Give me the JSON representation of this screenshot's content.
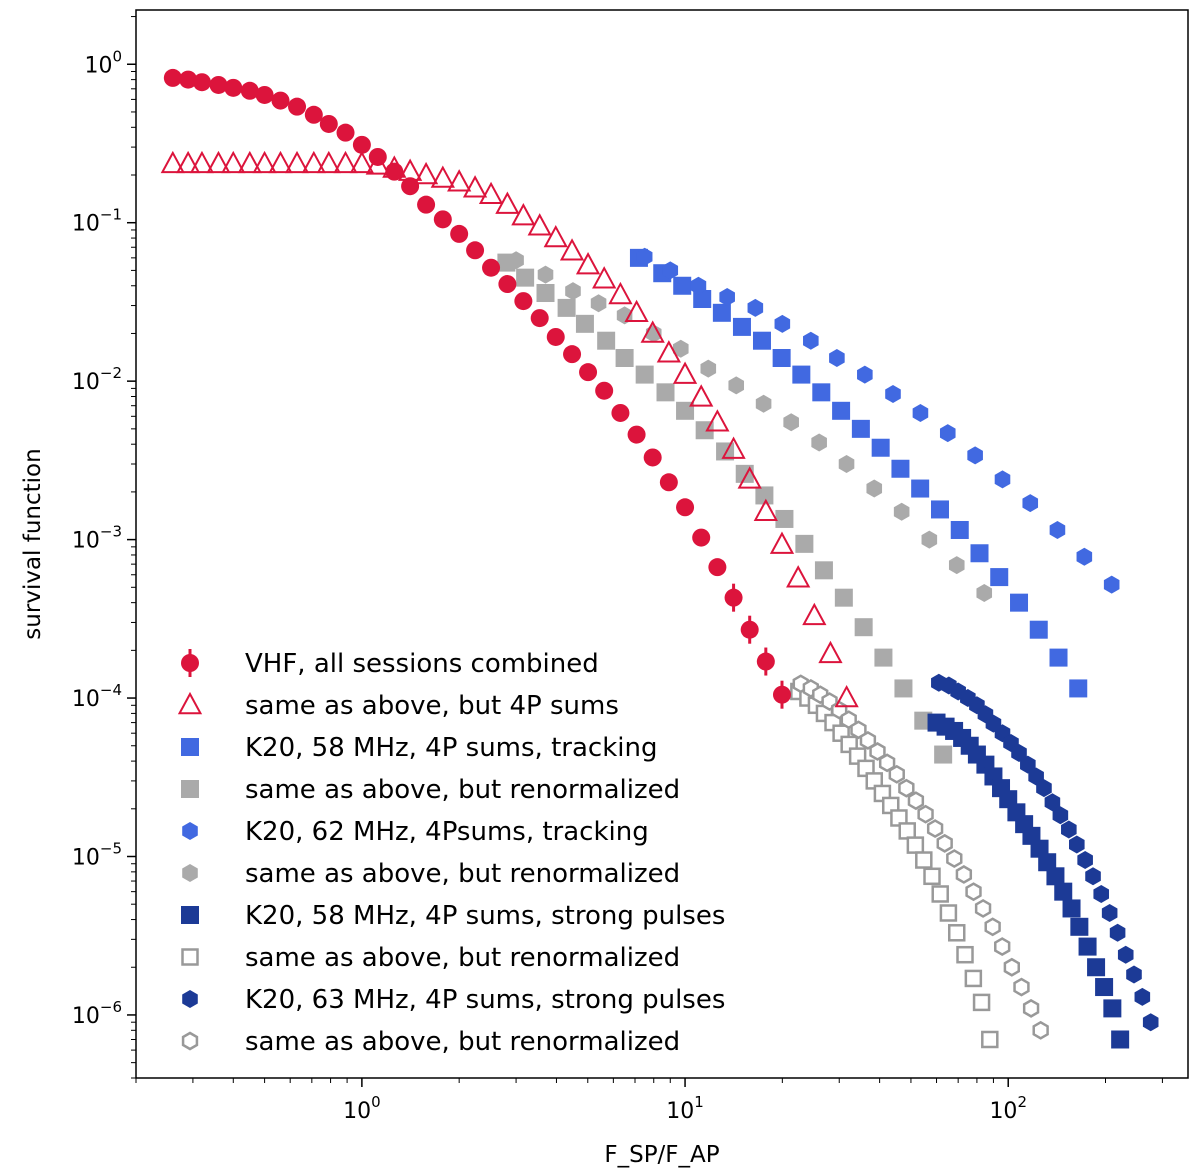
{
  "chart_data": {
    "type": "scatter",
    "xscale": "log",
    "yscale": "log",
    "xlabel": "F_SP/F_AP",
    "ylabel": "survival function",
    "xlim": [
      0.2,
      360
    ],
    "ylim": [
      4e-07,
      2.2
    ],
    "grid": false,
    "legend_position": "lower-left",
    "x_major_ticks": [
      {
        "value": 1,
        "base": "10",
        "exp": "0"
      },
      {
        "value": 10,
        "base": "10",
        "exp": "1"
      },
      {
        "value": 100,
        "base": "10",
        "exp": "2"
      }
    ],
    "y_major_ticks": [
      {
        "value": 1,
        "base": "10",
        "exp": "0"
      },
      {
        "value": 0.1,
        "base": "10",
        "exp": "−1"
      },
      {
        "value": 0.01,
        "base": "10",
        "exp": "−2"
      },
      {
        "value": 0.001,
        "base": "10",
        "exp": "−3"
      },
      {
        "value": 0.0001,
        "base": "10",
        "exp": "−4"
      },
      {
        "value": 1e-05,
        "base": "10",
        "exp": "−5"
      },
      {
        "value": 1e-06,
        "base": "10",
        "exp": "−6"
      }
    ],
    "series": [
      {
        "name": "VHF, all sessions combined",
        "marker": "circle",
        "filled": true,
        "color": "#dc143c",
        "points": [
          [
            0.26,
            0.82
          ],
          [
            0.29,
            0.8
          ],
          [
            0.32,
            0.77
          ],
          [
            0.36,
            0.74
          ],
          [
            0.4,
            0.71
          ],
          [
            0.45,
            0.68
          ],
          [
            0.5,
            0.64
          ],
          [
            0.56,
            0.59
          ],
          [
            0.63,
            0.54
          ],
          [
            0.71,
            0.48
          ],
          [
            0.79,
            0.42
          ],
          [
            0.89,
            0.37
          ],
          [
            1.0,
            0.31
          ],
          [
            1.12,
            0.26
          ],
          [
            1.26,
            0.21
          ],
          [
            1.41,
            0.17
          ],
          [
            1.58,
            0.13
          ],
          [
            1.78,
            0.105
          ],
          [
            2.0,
            0.085
          ],
          [
            2.24,
            0.067
          ],
          [
            2.51,
            0.052
          ],
          [
            2.82,
            0.041
          ],
          [
            3.16,
            0.032
          ],
          [
            3.55,
            0.025
          ],
          [
            3.98,
            0.019
          ],
          [
            4.47,
            0.0148
          ],
          [
            5.01,
            0.0114
          ],
          [
            5.62,
            0.0087
          ],
          [
            6.31,
            0.0063
          ],
          [
            7.08,
            0.0046
          ],
          [
            7.94,
            0.0033
          ],
          [
            8.91,
            0.0023
          ],
          [
            10.0,
            0.0016
          ],
          [
            11.22,
            0.00103
          ],
          [
            12.59,
            0.00067
          ],
          [
            14.13,
            0.00043
          ],
          [
            15.85,
            0.00027
          ],
          [
            17.78,
            0.00017
          ],
          [
            19.95,
            0.000105
          ]
        ]
      },
      {
        "name": "same as above, but 4P sums",
        "marker": "triangle",
        "filled": false,
        "color": "#dc143c",
        "points": [
          [
            0.26,
            0.235
          ],
          [
            0.29,
            0.235
          ],
          [
            0.32,
            0.235
          ],
          [
            0.36,
            0.235
          ],
          [
            0.4,
            0.235
          ],
          [
            0.45,
            0.235
          ],
          [
            0.5,
            0.235
          ],
          [
            0.56,
            0.235
          ],
          [
            0.63,
            0.235
          ],
          [
            0.71,
            0.235
          ],
          [
            0.79,
            0.235
          ],
          [
            0.89,
            0.235
          ],
          [
            1.0,
            0.235
          ],
          [
            1.12,
            0.23
          ],
          [
            1.26,
            0.22
          ],
          [
            1.41,
            0.21
          ],
          [
            1.58,
            0.2
          ],
          [
            1.78,
            0.19
          ],
          [
            2.0,
            0.18
          ],
          [
            2.24,
            0.165
          ],
          [
            2.51,
            0.15
          ],
          [
            2.82,
            0.13
          ],
          [
            3.16,
            0.11
          ],
          [
            3.55,
            0.095
          ],
          [
            3.98,
            0.08
          ],
          [
            4.47,
            0.066
          ],
          [
            5.01,
            0.054
          ],
          [
            5.62,
            0.044
          ],
          [
            6.31,
            0.035
          ],
          [
            7.08,
            0.027
          ],
          [
            7.94,
            0.02
          ],
          [
            8.91,
            0.015
          ],
          [
            10.0,
            0.011
          ],
          [
            11.22,
            0.0079
          ],
          [
            12.59,
            0.0055
          ],
          [
            14.13,
            0.0037
          ],
          [
            15.85,
            0.0024
          ],
          [
            17.78,
            0.0015
          ],
          [
            19.95,
            0.00093
          ],
          [
            22.39,
            0.00057
          ],
          [
            25.12,
            0.00033
          ],
          [
            28.18,
            0.00019
          ],
          [
            31.62,
            0.0001
          ]
        ]
      },
      {
        "name": "K20, 58 MHz, 4P sums, tracking",
        "marker": "square",
        "filled": true,
        "color": "#4169e1",
        "points": [
          [
            7.2,
            0.06
          ],
          [
            8.5,
            0.048
          ],
          [
            9.8,
            0.04
          ],
          [
            11.3,
            0.033
          ],
          [
            13.0,
            0.027
          ],
          [
            15.0,
            0.022
          ],
          [
            17.3,
            0.018
          ],
          [
            19.9,
            0.014
          ],
          [
            22.9,
            0.011
          ],
          [
            26.4,
            0.0085
          ],
          [
            30.4,
            0.0065
          ],
          [
            35.0,
            0.005
          ],
          [
            40.3,
            0.0038
          ],
          [
            46.4,
            0.0028
          ],
          [
            53.4,
            0.0021
          ],
          [
            61.5,
            0.00155
          ],
          [
            70.8,
            0.00115
          ],
          [
            81.5,
            0.00082
          ],
          [
            93.8,
            0.00058
          ],
          [
            108.0,
            0.0004
          ],
          [
            124.3,
            0.00027
          ],
          [
            143.1,
            0.00018
          ],
          [
            164.7,
            0.000115
          ]
        ]
      },
      {
        "name": "same as above, but renormalized",
        "marker": "square",
        "filled": true,
        "color": "#aaaaaa",
        "points": [
          [
            2.8,
            0.056
          ],
          [
            3.2,
            0.045
          ],
          [
            3.7,
            0.036
          ],
          [
            4.3,
            0.029
          ],
          [
            4.9,
            0.023
          ],
          [
            5.7,
            0.018
          ],
          [
            6.5,
            0.014
          ],
          [
            7.5,
            0.011
          ],
          [
            8.7,
            0.0085
          ],
          [
            10.0,
            0.0065
          ],
          [
            11.5,
            0.0049
          ],
          [
            13.3,
            0.0036
          ],
          [
            15.3,
            0.0026
          ],
          [
            17.6,
            0.0019
          ],
          [
            20.3,
            0.00135
          ],
          [
            23.4,
            0.00094
          ],
          [
            26.9,
            0.00064
          ],
          [
            31.0,
            0.00043
          ],
          [
            35.7,
            0.00028
          ],
          [
            41.1,
            0.00018
          ],
          [
            47.4,
            0.000115
          ],
          [
            54.6,
            7.2e-05
          ],
          [
            62.9,
            4.4e-05
          ]
        ]
      },
      {
        "name": "K20, 62 MHz, 4Psums, tracking",
        "marker": "hexagon",
        "filled": true,
        "color": "#4169e1",
        "points": [
          [
            7.5,
            0.061
          ],
          [
            9.0,
            0.05
          ],
          [
            11.0,
            0.04
          ],
          [
            13.5,
            0.034
          ],
          [
            16.5,
            0.029
          ],
          [
            20.0,
            0.023
          ],
          [
            24.5,
            0.018
          ],
          [
            29.5,
            0.014
          ],
          [
            36.0,
            0.011
          ],
          [
            44.0,
            0.0083
          ],
          [
            53.5,
            0.0063
          ],
          [
            65.0,
            0.0047
          ],
          [
            79.0,
            0.0034
          ],
          [
            96.0,
            0.0024
          ],
          [
            117.0,
            0.0017
          ],
          [
            142.0,
            0.00115
          ],
          [
            172.0,
            0.00078
          ],
          [
            209.0,
            0.00052
          ]
        ]
      },
      {
        "name": "same as above, but renormalized",
        "marker": "hexagon",
        "filled": true,
        "color": "#aaaaaa",
        "points": [
          [
            3.0,
            0.058
          ],
          [
            3.7,
            0.047
          ],
          [
            4.5,
            0.037
          ],
          [
            5.4,
            0.031
          ],
          [
            6.5,
            0.026
          ],
          [
            8.0,
            0.02
          ],
          [
            9.7,
            0.016
          ],
          [
            11.8,
            0.012
          ],
          [
            14.4,
            0.0094
          ],
          [
            17.5,
            0.0072
          ],
          [
            21.3,
            0.0055
          ],
          [
            26.0,
            0.0041
          ],
          [
            31.6,
            0.003
          ],
          [
            38.5,
            0.0021
          ],
          [
            46.8,
            0.0015
          ],
          [
            57.0,
            0.001
          ],
          [
            69.3,
            0.00069
          ],
          [
            84.3,
            0.00046
          ]
        ]
      },
      {
        "name": "K20, 58 MHz, 4P sums, strong pulses",
        "marker": "square",
        "filled": true,
        "color": "#1c3a96",
        "points": [
          [
            60.0,
            7e-05
          ],
          [
            64.0,
            6.6e-05
          ],
          [
            68.0,
            6.2e-05
          ],
          [
            72.0,
            5.6e-05
          ],
          [
            76.0,
            5e-05
          ],
          [
            80.0,
            4.4e-05
          ],
          [
            85.0,
            3.8e-05
          ],
          [
            90.0,
            3.2e-05
          ],
          [
            95.0,
            2.7e-05
          ],
          [
            100.0,
            2.3e-05
          ],
          [
            106.0,
            1.9e-05
          ],
          [
            112.0,
            1.6e-05
          ],
          [
            118.0,
            1.35e-05
          ],
          [
            125.0,
            1.12e-05
          ],
          [
            132.0,
            9.2e-06
          ],
          [
            140.0,
            7.5e-06
          ],
          [
            148.0,
            6e-06
          ],
          [
            157.0,
            4.7e-06
          ],
          [
            166.0,
            3.6e-06
          ],
          [
            176.0,
            2.7e-06
          ],
          [
            187.0,
            2e-06
          ],
          [
            198.0,
            1.5e-06
          ],
          [
            210.0,
            1.1e-06
          ],
          [
            222.0,
            7e-07
          ]
        ]
      },
      {
        "name": "same as above, but renormalized",
        "marker": "square",
        "filled": false,
        "color": "#999999",
        "points": [
          [
            22.5,
            0.00011
          ],
          [
            24.0,
            0.0001
          ],
          [
            25.5,
            9e-05
          ],
          [
            27.0,
            8e-05
          ],
          [
            28.7,
            7e-05
          ],
          [
            30.4,
            6e-05
          ],
          [
            32.2,
            5.1e-05
          ],
          [
            34.2,
            4.3e-05
          ],
          [
            36.3,
            3.6e-05
          ],
          [
            38.5,
            3e-05
          ],
          [
            40.8,
            2.5e-05
          ],
          [
            43.3,
            2.1e-05
          ],
          [
            45.9,
            1.75e-05
          ],
          [
            48.7,
            1.45e-05
          ],
          [
            51.6,
            1.18e-05
          ],
          [
            54.8,
            9.5e-06
          ],
          [
            58.1,
            7.5e-06
          ],
          [
            61.6,
            5.8e-06
          ],
          [
            65.3,
            4.4e-06
          ],
          [
            69.3,
            3.3e-06
          ],
          [
            73.5,
            2.4e-06
          ],
          [
            78.0,
            1.7e-06
          ],
          [
            82.7,
            1.2e-06
          ],
          [
            87.7,
            7e-07
          ]
        ]
      },
      {
        "name": "K20, 63 MHz, 4P sums, strong pulses",
        "marker": "hexagon",
        "filled": true,
        "color": "#1c3a96",
        "points": [
          [
            61.0,
            0.000125
          ],
          [
            65.5,
            0.00012
          ],
          [
            70.0,
            0.00011
          ],
          [
            75.0,
            0.0001
          ],
          [
            80.0,
            9e-05
          ],
          [
            85.0,
            7.9e-05
          ],
          [
            90.0,
            6.9e-05
          ],
          [
            96.0,
            6e-05
          ],
          [
            102.0,
            5.2e-05
          ],
          [
            108.0,
            4.5e-05
          ],
          [
            115.0,
            3.8e-05
          ],
          [
            122.0,
            3.2e-05
          ],
          [
            129.0,
            2.7e-05
          ],
          [
            137.0,
            2.2e-05
          ],
          [
            145.0,
            1.82e-05
          ],
          [
            154.0,
            1.48e-05
          ],
          [
            163.0,
            1.19e-05
          ],
          [
            173.0,
            9.5e-06
          ],
          [
            183.0,
            7.5e-06
          ],
          [
            194.0,
            5.8e-06
          ],
          [
            206.0,
            4.4e-06
          ],
          [
            218.0,
            3.3e-06
          ],
          [
            231.0,
            2.4e-06
          ],
          [
            245.0,
            1.8e-06
          ],
          [
            260.0,
            1.3e-06
          ],
          [
            276.0,
            9e-07
          ]
        ]
      },
      {
        "name": "same as above, but renormalized",
        "marker": "hexagon",
        "filled": false,
        "color": "#999999",
        "points": [
          [
            22.8,
            0.000123
          ],
          [
            24.5,
            0.000115
          ],
          [
            26.2,
            0.000105
          ],
          [
            28.0,
            9.5e-05
          ],
          [
            30.0,
            8.4e-05
          ],
          [
            32.1,
            7.3e-05
          ],
          [
            34.4,
            6.3e-05
          ],
          [
            36.8,
            5.4e-05
          ],
          [
            39.4,
            4.6e-05
          ],
          [
            42.2,
            3.9e-05
          ],
          [
            45.2,
            3.3e-05
          ],
          [
            48.4,
            2.7e-05
          ],
          [
            51.8,
            2.25e-05
          ],
          [
            55.5,
            1.85e-05
          ],
          [
            59.4,
            1.5e-05
          ],
          [
            63.6,
            1.21e-05
          ],
          [
            68.1,
            9.7e-06
          ],
          [
            72.9,
            7.7e-06
          ],
          [
            78.1,
            6e-06
          ],
          [
            83.6,
            4.7e-06
          ],
          [
            89.5,
            3.6e-06
          ],
          [
            95.8,
            2.7e-06
          ],
          [
            102.6,
            2e-06
          ],
          [
            109.9,
            1.5e-06
          ],
          [
            117.7,
            1.1e-06
          ],
          [
            126.0,
            8e-07
          ]
        ]
      }
    ]
  }
}
